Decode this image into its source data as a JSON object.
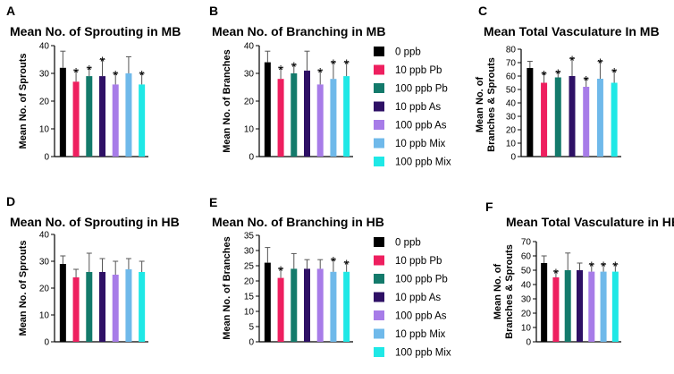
{
  "legend": {
    "entries": [
      "0 ppb",
      "10 ppb Pb",
      "100 ppb Pb",
      "10 ppb As",
      "100 ppb As",
      "10 ppb Mix",
      "100 ppb Mix"
    ],
    "colors": [
      "#000000",
      "#ee1f5f",
      "#137a6b",
      "#2e1065",
      "#a77ce8",
      "#6fb9ea",
      "#1fe8e6"
    ]
  },
  "chart_data": [
    {
      "type": "bar",
      "letter": "A",
      "title": "Mean No. of Sprouting in MB",
      "ylabel": "Mean No. of Sprouts",
      "ylim": [
        0,
        40
      ],
      "ticks": [
        "0",
        "10",
        "20",
        "30",
        "40"
      ],
      "categories": [
        "0 ppb",
        "10 ppb Pb",
        "100 ppb Pb",
        "10 ppb As",
        "100 ppb As",
        "10 ppb Mix",
        "100 ppb Mix"
      ],
      "values": [
        32,
        27,
        29,
        29,
        26,
        30,
        26
      ],
      "errors": [
        6,
        4,
        3,
        6,
        4,
        6,
        4
      ],
      "significant": [
        "",
        "*",
        "*",
        "*",
        "*",
        "",
        "*"
      ]
    },
    {
      "type": "bar",
      "letter": "B",
      "title": "Mean No. of Branching in MB",
      "ylabel": "Mean No. of Branches",
      "ylim": [
        0,
        40
      ],
      "ticks": [
        "0",
        "10",
        "20",
        "30",
        "40"
      ],
      "categories": [
        "0 ppb",
        "10 ppb Pb",
        "100 ppb Pb",
        "10 ppb As",
        "100 ppb As",
        "10 ppb Mix",
        "100 ppb Mix"
      ],
      "values": [
        34,
        28,
        30,
        31,
        26,
        28,
        29
      ],
      "errors": [
        4,
        4,
        3,
        7,
        5,
        6,
        5
      ],
      "significant": [
        "",
        "*",
        "*",
        "",
        "*",
        "*",
        "*"
      ]
    },
    {
      "type": "bar",
      "letter": "C",
      "title": "Mean Total Vasculature In MB",
      "ylabel_lines": [
        "Mean No. of",
        "Branches & Sprouts"
      ],
      "ylim": [
        0,
        80
      ],
      "ticks": [
        "0",
        "10",
        "20",
        "30",
        "40",
        "50",
        "60",
        "70",
        "80"
      ],
      "categories": [
        "0 ppb",
        "10 ppb Pb",
        "100 ppb Pb",
        "10 ppb As",
        "100 ppb As",
        "10 ppb Mix",
        "100 ppb Mix"
      ],
      "values": [
        66,
        55,
        59,
        60,
        52,
        58,
        55
      ],
      "errors": [
        5,
        7,
        4,
        13,
        6,
        13,
        9
      ],
      "significant": [
        "",
        "*",
        "*",
        "*",
        "*",
        "*",
        "*"
      ]
    },
    {
      "type": "bar",
      "letter": "D",
      "title": "Mean No. of Sprouting in HB",
      "ylabel": "Mean No. of Sprouts",
      "ylim": [
        0,
        40
      ],
      "ticks": [
        "0",
        "10",
        "20",
        "30",
        "40"
      ],
      "categories": [
        "0 ppb",
        "10 ppb Pb",
        "100 ppb Pb",
        "10 ppb As",
        "100 ppb As",
        "10 ppb Mix",
        "100 ppb Mix"
      ],
      "values": [
        29,
        24,
        26,
        26,
        25,
        27,
        26
      ],
      "errors": [
        3,
        3,
        7,
        5,
        5,
        4,
        4
      ],
      "significant": [
        "",
        "",
        "",
        "",
        "",
        "",
        ""
      ]
    },
    {
      "type": "bar",
      "letter": "E",
      "title": "Mean No. of Branching in HB",
      "ylabel": "Mean No. of Branches",
      "ylim": [
        0,
        35
      ],
      "ticks": [
        "0",
        "5",
        "10",
        "15",
        "20",
        "25",
        "30",
        "35"
      ],
      "categories": [
        "0 ppb",
        "10 ppb Pb",
        "100 ppb Pb",
        "10 ppb As",
        "100 ppb As",
        "10 ppb Mix",
        "100 ppb Mix"
      ],
      "values": [
        26,
        21,
        24,
        24,
        24,
        23,
        23
      ],
      "errors": [
        5,
        3,
        5,
        3,
        3,
        4,
        3
      ],
      "significant": [
        "",
        "*",
        "",
        "",
        "",
        "*",
        "*"
      ]
    },
    {
      "type": "bar",
      "letter": "F",
      "title": "Mean Total Vasculature in HB",
      "ylabel_lines": [
        "Mean No. of",
        "Branches & Sprouts"
      ],
      "ylim": [
        0,
        70
      ],
      "ticks": [
        "0",
        "10",
        "20",
        "30",
        "40",
        "50",
        "60",
        "70"
      ],
      "categories": [
        "0 ppb",
        "10 ppb Pb",
        "100 ppb Pb",
        "10 ppb As",
        "100 ppb As",
        "10 ppb Mix",
        "100 ppb Mix"
      ],
      "values": [
        55,
        45,
        50,
        50,
        49,
        49,
        49
      ],
      "errors": [
        5,
        4,
        12,
        5,
        5,
        5,
        5
      ],
      "significant": [
        "",
        "*",
        "",
        "",
        "*",
        "*",
        "*"
      ]
    }
  ]
}
